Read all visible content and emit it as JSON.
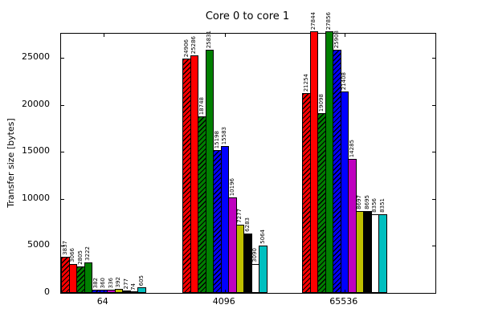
{
  "chart_data": {
    "type": "bar",
    "title": "Core 0 to core 1",
    "ylabel": "Transfer size [bytes]",
    "xlabel": "",
    "categories": [
      "64",
      "4096",
      "65536"
    ],
    "series": [
      {
        "name": "red-hatched",
        "color": "#ff0000",
        "hatch": true,
        "values": [
          3837,
          24906,
          21254
        ]
      },
      {
        "name": "red-solid",
        "color": "#ff0000",
        "hatch": false,
        "values": [
          3066,
          25286,
          27844
        ]
      },
      {
        "name": "green-hatched",
        "color": "#007f00",
        "hatch": true,
        "values": [
          2805,
          18748,
          19098
        ]
      },
      {
        "name": "green-solid",
        "color": "#007f00",
        "hatch": false,
        "values": [
          3222,
          25831,
          27856
        ]
      },
      {
        "name": "blue-hatched",
        "color": "#0000ff",
        "hatch": true,
        "values": [
          382,
          15198,
          25903
        ]
      },
      {
        "name": "blue-solid",
        "color": "#0000ff",
        "hatch": false,
        "values": [
          360,
          15583,
          21408
        ]
      },
      {
        "name": "magenta",
        "color": "#bf00bf",
        "hatch": false,
        "values": [
          336,
          10196,
          14285
        ]
      },
      {
        "name": "dark-yellow",
        "color": "#bfbf00",
        "hatch": false,
        "values": [
          392,
          7277,
          8697
        ]
      },
      {
        "name": "black",
        "color": "#000000",
        "hatch": false,
        "values": [
          277,
          6283,
          8695
        ]
      },
      {
        "name": "white",
        "color": "#ffffff",
        "hatch": false,
        "values": [
          74,
          3090,
          8356
        ]
      },
      {
        "name": "cyan",
        "color": "#00bfbf",
        "hatch": false,
        "values": [
          605,
          5064,
          8351
        ]
      }
    ],
    "yticks": [
      0,
      5000,
      10000,
      15000,
      20000,
      25000
    ],
    "ylim": [
      0,
      27570
    ],
    "bar_value_labels": true,
    "grid": false,
    "legend": "none",
    "axis_color": "#000000",
    "background_color": "#ffffff"
  }
}
